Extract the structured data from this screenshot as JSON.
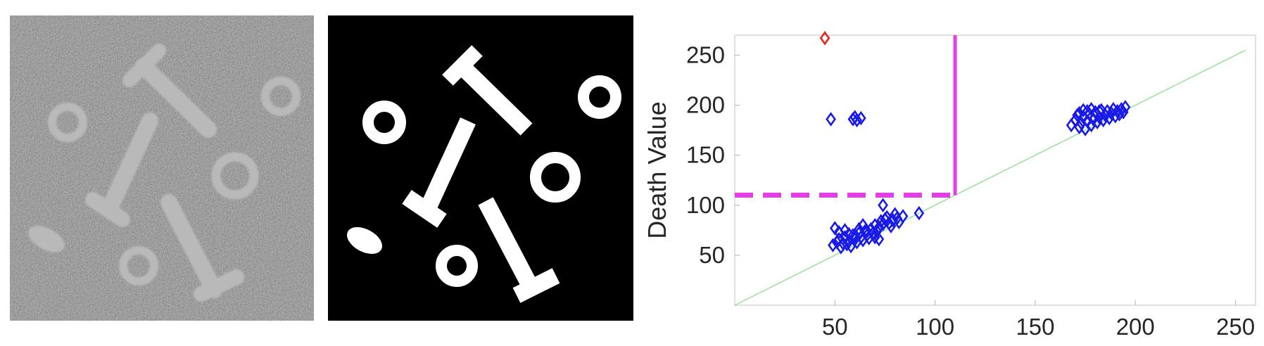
{
  "panels": {
    "grayscale_image": {
      "shape_icons": [
        "bolt",
        "bolt",
        "bolt",
        "ring",
        "ring",
        "ring",
        "ring",
        "oval"
      ]
    },
    "binary_image": {
      "shape_icons": [
        "bolt",
        "bolt",
        "bolt",
        "ring",
        "ring",
        "ring",
        "ring",
        "oval"
      ]
    }
  },
  "chart_data": {
    "type": "scatter",
    "title": "",
    "xlabel": "",
    "ylabel": "Death Value",
    "xlim": [
      0,
      260
    ],
    "ylim": [
      0,
      270
    ],
    "xticks": [
      50,
      100,
      150,
      200,
      250
    ],
    "yticks": [
      50,
      100,
      150,
      200,
      250
    ],
    "grid": false,
    "legend": "none",
    "threshold": 110,
    "diagonal": [
      [
        0,
        0
      ],
      [
        255,
        255
      ]
    ],
    "colors": {
      "points": "#1a1ae6",
      "highlight": "#e6261a",
      "threshold": "#e63ee6",
      "diagonal": "#7fe07f"
    },
    "series": [
      {
        "color_name": "blue",
        "points": [
          [
            48,
            186
          ],
          [
            59,
            186
          ],
          [
            61,
            185
          ],
          [
            63,
            187
          ],
          [
            60,
            188
          ],
          [
            49,
            60
          ],
          [
            51,
            63
          ],
          [
            52,
            66
          ],
          [
            53,
            58
          ],
          [
            54,
            62
          ],
          [
            55,
            68
          ],
          [
            56,
            61
          ],
          [
            57,
            64
          ],
          [
            58,
            59
          ],
          [
            59,
            70
          ],
          [
            60,
            66
          ],
          [
            61,
            63
          ],
          [
            62,
            72
          ],
          [
            63,
            68
          ],
          [
            64,
            65
          ],
          [
            65,
            74
          ],
          [
            66,
            70
          ],
          [
            67,
            67
          ],
          [
            68,
            76
          ],
          [
            69,
            72
          ],
          [
            70,
            80
          ],
          [
            71,
            74
          ],
          [
            72,
            78
          ],
          [
            73,
            84
          ],
          [
            74,
            81
          ],
          [
            75,
            86
          ],
          [
            76,
            88
          ],
          [
            77,
            82
          ],
          [
            78,
            79
          ],
          [
            79,
            85
          ],
          [
            80,
            91
          ],
          [
            81,
            87
          ],
          [
            82,
            83
          ],
          [
            84,
            89
          ],
          [
            92,
            92
          ],
          [
            74,
            100
          ],
          [
            50,
            77
          ],
          [
            52,
            73
          ],
          [
            55,
            75
          ],
          [
            57,
            71
          ],
          [
            60,
            69
          ],
          [
            62,
            76
          ],
          [
            64,
            80
          ],
          [
            66,
            74
          ],
          [
            70,
            68
          ],
          [
            72,
            66
          ],
          [
            168,
            180
          ],
          [
            170,
            185
          ],
          [
            171,
            190
          ],
          [
            172,
            178
          ],
          [
            173,
            182
          ],
          [
            174,
            188
          ],
          [
            175,
            176
          ],
          [
            176,
            184
          ],
          [
            177,
            191
          ],
          [
            178,
            180
          ],
          [
            179,
            186
          ],
          [
            180,
            193
          ],
          [
            181,
            183
          ],
          [
            182,
            188
          ],
          [
            183,
            195
          ],
          [
            184,
            185
          ],
          [
            185,
            190
          ],
          [
            186,
            194
          ],
          [
            187,
            187
          ],
          [
            188,
            192
          ],
          [
            189,
            196
          ],
          [
            190,
            189
          ],
          [
            191,
            194
          ],
          [
            192,
            191
          ],
          [
            193,
            196
          ],
          [
            194,
            193
          ],
          [
            195,
            198
          ],
          [
            176,
            194
          ],
          [
            174,
            195
          ],
          [
            172,
            192
          ],
          [
            178,
            196
          ],
          [
            182,
            194
          ]
        ]
      },
      {
        "color_name": "red",
        "points": [
          [
            45,
            267
          ]
        ]
      }
    ]
  }
}
